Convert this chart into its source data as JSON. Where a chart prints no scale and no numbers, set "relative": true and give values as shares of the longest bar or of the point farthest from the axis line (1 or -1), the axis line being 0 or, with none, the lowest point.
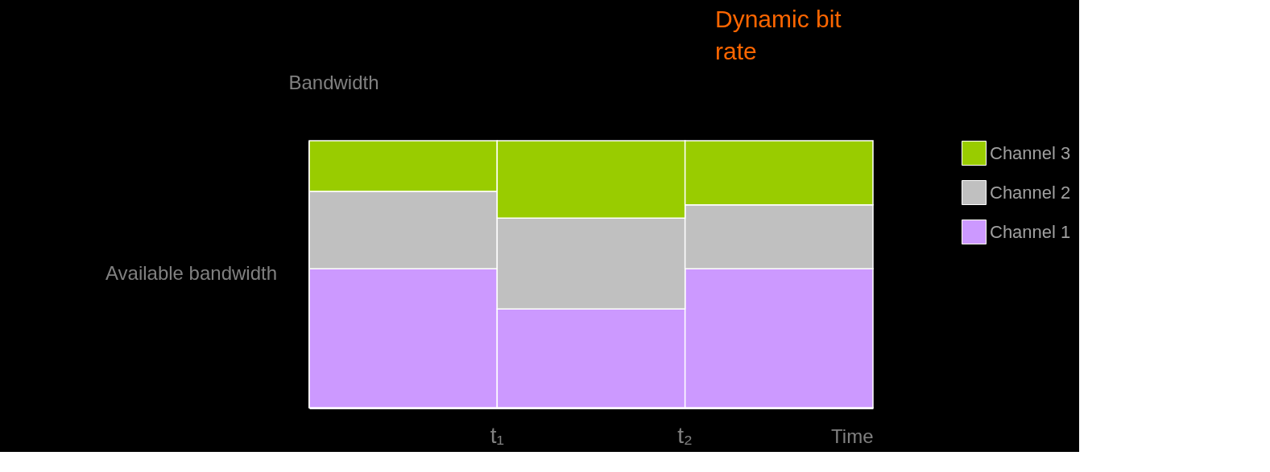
{
  "chart_data": {
    "type": "bar",
    "stacked": true,
    "relative": true,
    "categories": [
      null,
      null,
      null
    ],
    "xlabel": "Time",
    "ylabel": "Bandwidth",
    "series": [
      {
        "name": "Channel 1",
        "color": "#cc99ff",
        "values": [
          0.52,
          0.37,
          0.52
        ]
      },
      {
        "name": "Channel 2",
        "color": "#c0c0c0",
        "values": [
          0.29,
          0.34,
          0.24
        ]
      },
      {
        "name": "Channel 3",
        "color": "#99cc00",
        "values": [
          0.19,
          0.29,
          0.24
        ]
      }
    ],
    "annotations": [
      "Dynamic bit rate",
      "Available bandwidth",
      "t₁",
      "t₂"
    ],
    "legend": "right",
    "grid": false
  }
}
